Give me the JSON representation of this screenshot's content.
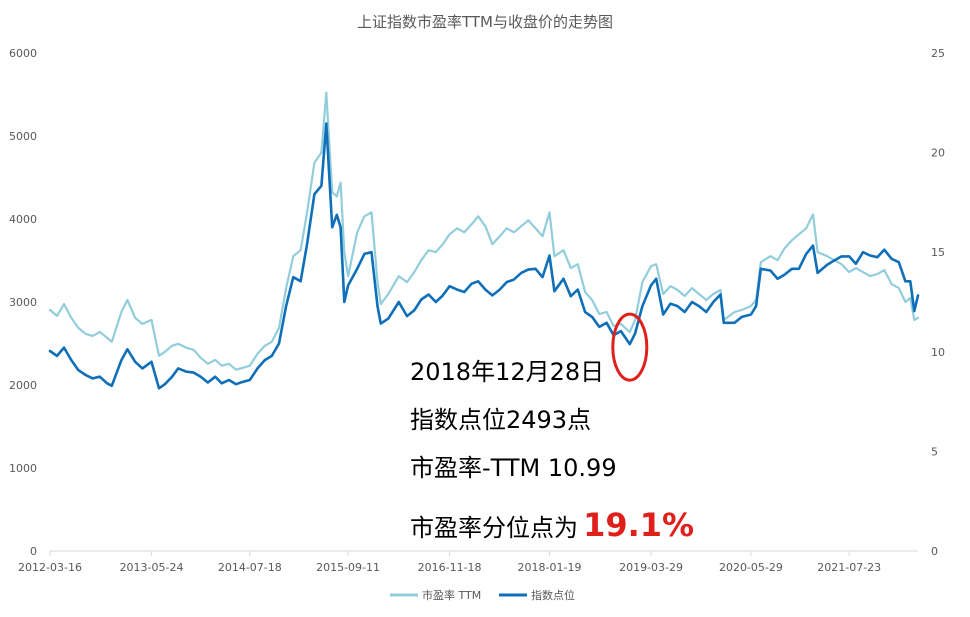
{
  "colors": {
    "pe_series": "#92CDDC",
    "index_series": "#0F6FB8",
    "axis": "#D9D9D9",
    "text": "#595959",
    "annotation_highlight": "#E0201B",
    "circle": "#E0201B"
  },
  "chart_data": {
    "type": "line",
    "title": "上证指数市盈率TTM与收盘价的走势图",
    "x_tick_labels": [
      "2012-03-16",
      "2013-05-24",
      "2014-07-18",
      "2015-09-11",
      "2016-11-18",
      "2018-01-19",
      "2019-03-29",
      "2020-05-29",
      "2021-07-23"
    ],
    "x_range": [
      "2012-03-16",
      "2022-05-13"
    ],
    "y_left": {
      "range": [
        0,
        6000
      ],
      "ticks": [
        "0",
        "1000",
        "2000",
        "3000",
        "4000",
        "5000",
        "6000"
      ]
    },
    "y_right": {
      "range": [
        0,
        25
      ],
      "ticks": [
        "0",
        "5",
        "10",
        "15",
        "20",
        "25"
      ]
    },
    "legend_position": "bottom",
    "grid": false,
    "series": [
      {
        "name": "市盈率 TTM",
        "axis": "right",
        "points": [
          [
            "2012-03-16",
            12.1
          ],
          [
            "2012-04-15",
            11.8
          ],
          [
            "2012-05-15",
            12.4
          ],
          [
            "2012-06-15",
            11.7
          ],
          [
            "2012-07-15",
            11.2
          ],
          [
            "2012-08-15",
            10.9
          ],
          [
            "2012-09-15",
            10.8
          ],
          [
            "2012-10-15",
            11.0
          ],
          [
            "2012-11-15",
            10.7
          ],
          [
            "2012-12-05",
            10.5
          ],
          [
            "2013-01-15",
            12.0
          ],
          [
            "2013-02-10",
            12.6
          ],
          [
            "2013-03-15",
            11.7
          ],
          [
            "2013-04-15",
            11.4
          ],
          [
            "2013-05-24",
            11.6
          ],
          [
            "2013-06-25",
            9.8
          ],
          [
            "2013-07-20",
            10.0
          ],
          [
            "2013-08-20",
            10.3
          ],
          [
            "2013-09-15",
            10.4
          ],
          [
            "2013-10-20",
            10.2
          ],
          [
            "2013-11-20",
            10.1
          ],
          [
            "2013-12-20",
            9.7
          ],
          [
            "2014-01-20",
            9.4
          ],
          [
            "2014-02-20",
            9.6
          ],
          [
            "2014-03-20",
            9.3
          ],
          [
            "2014-04-20",
            9.4
          ],
          [
            "2014-05-20",
            9.1
          ],
          [
            "2014-06-20",
            9.2
          ],
          [
            "2014-07-18",
            9.3
          ],
          [
            "2014-08-20",
            9.9
          ],
          [
            "2014-09-20",
            10.3
          ],
          [
            "2014-10-20",
            10.5
          ],
          [
            "2014-11-20",
            11.2
          ],
          [
            "2014-12-20",
            13.2
          ],
          [
            "2015-01-20",
            14.8
          ],
          [
            "2015-02-20",
            15.1
          ],
          [
            "2015-03-20",
            17.0
          ],
          [
            "2015-04-20",
            19.5
          ],
          [
            "2015-05-20",
            20.0
          ],
          [
            "2015-06-10",
            23.0
          ],
          [
            "2015-07-05",
            18.0
          ],
          [
            "2015-07-25",
            17.8
          ],
          [
            "2015-08-10",
            18.5
          ],
          [
            "2015-08-26",
            15.0
          ],
          [
            "2015-09-11",
            13.8
          ],
          [
            "2015-10-20",
            16.0
          ],
          [
            "2015-11-20",
            16.8
          ],
          [
            "2015-12-20",
            17.0
          ],
          [
            "2016-01-15",
            13.5
          ],
          [
            "2016-01-29",
            12.4
          ],
          [
            "2016-03-01",
            12.9
          ],
          [
            "2016-04-15",
            13.8
          ],
          [
            "2016-05-20",
            13.5
          ],
          [
            "2016-06-20",
            14.0
          ],
          [
            "2016-07-20",
            14.6
          ],
          [
            "2016-08-20",
            15.1
          ],
          [
            "2016-09-20",
            15.0
          ],
          [
            "2016-10-20",
            15.4
          ],
          [
            "2016-11-18",
            15.9
          ],
          [
            "2016-12-20",
            16.2
          ],
          [
            "2017-01-20",
            16.0
          ],
          [
            "2017-02-20",
            16.4
          ],
          [
            "2017-03-20",
            16.8
          ],
          [
            "2017-04-20",
            16.3
          ],
          [
            "2017-05-20",
            15.4
          ],
          [
            "2017-06-20",
            15.8
          ],
          [
            "2017-07-20",
            16.2
          ],
          [
            "2017-08-20",
            16.0
          ],
          [
            "2017-09-20",
            16.3
          ],
          [
            "2017-10-20",
            16.6
          ],
          [
            "2017-11-20",
            16.2
          ],
          [
            "2017-12-20",
            15.8
          ],
          [
            "2018-01-19",
            17.0
          ],
          [
            "2018-02-09",
            14.8
          ],
          [
            "2018-03-20",
            15.1
          ],
          [
            "2018-04-20",
            14.2
          ],
          [
            "2018-05-20",
            14.4
          ],
          [
            "2018-06-20",
            13.0
          ],
          [
            "2018-07-20",
            12.6
          ],
          [
            "2018-08-20",
            11.9
          ],
          [
            "2018-09-20",
            12.0
          ],
          [
            "2018-10-20",
            11.3
          ],
          [
            "2018-11-20",
            11.4
          ],
          [
            "2018-12-28",
            10.99
          ],
          [
            "2019-01-20",
            11.6
          ],
          [
            "2019-02-20",
            13.5
          ],
          [
            "2019-03-29",
            14.3
          ],
          [
            "2019-04-20",
            14.4
          ],
          [
            "2019-05-20",
            12.9
          ],
          [
            "2019-06-20",
            13.3
          ],
          [
            "2019-07-20",
            13.1
          ],
          [
            "2019-08-20",
            12.8
          ],
          [
            "2019-09-20",
            13.2
          ],
          [
            "2019-10-20",
            12.9
          ],
          [
            "2019-11-20",
            12.6
          ],
          [
            "2019-12-20",
            12.9
          ],
          [
            "2020-01-20",
            13.1
          ],
          [
            "2020-02-03",
            11.6
          ],
          [
            "2020-03-20",
            12.0
          ],
          [
            "2020-04-20",
            12.1
          ],
          [
            "2020-05-29",
            12.3
          ],
          [
            "2020-06-20",
            12.6
          ],
          [
            "2020-07-10",
            14.5
          ],
          [
            "2020-08-20",
            14.8
          ],
          [
            "2020-09-20",
            14.6
          ],
          [
            "2020-10-20",
            15.2
          ],
          [
            "2020-11-20",
            15.6
          ],
          [
            "2020-12-20",
            15.9
          ],
          [
            "2021-01-20",
            16.2
          ],
          [
            "2021-02-18",
            16.9
          ],
          [
            "2021-03-10",
            15.0
          ],
          [
            "2021-04-20",
            14.8
          ],
          [
            "2021-05-20",
            14.6
          ],
          [
            "2021-06-20",
            14.4
          ],
          [
            "2021-07-23",
            14.0
          ],
          [
            "2021-08-20",
            14.2
          ],
          [
            "2021-09-20",
            14.0
          ],
          [
            "2021-10-20",
            13.8
          ],
          [
            "2021-11-20",
            13.9
          ],
          [
            "2021-12-20",
            14.1
          ],
          [
            "2022-01-20",
            13.4
          ],
          [
            "2022-02-20",
            13.2
          ],
          [
            "2022-03-20",
            12.5
          ],
          [
            "2022-04-10",
            12.7
          ],
          [
            "2022-04-27",
            11.6
          ],
          [
            "2022-05-13",
            11.7
          ]
        ]
      },
      {
        "name": "指数点位",
        "axis": "left",
        "points": [
          [
            "2012-03-16",
            2410
          ],
          [
            "2012-04-15",
            2350
          ],
          [
            "2012-05-15",
            2450
          ],
          [
            "2012-06-15",
            2300
          ],
          [
            "2012-07-15",
            2180
          ],
          [
            "2012-08-15",
            2120
          ],
          [
            "2012-09-15",
            2080
          ],
          [
            "2012-10-15",
            2100
          ],
          [
            "2012-11-15",
            2020
          ],
          [
            "2012-12-05",
            1990
          ],
          [
            "2013-01-15",
            2300
          ],
          [
            "2013-02-10",
            2430
          ],
          [
            "2013-03-15",
            2280
          ],
          [
            "2013-04-15",
            2200
          ],
          [
            "2013-05-24",
            2280
          ],
          [
            "2013-06-25",
            1960
          ],
          [
            "2013-07-20",
            2010
          ],
          [
            "2013-08-20",
            2100
          ],
          [
            "2013-09-15",
            2200
          ],
          [
            "2013-10-20",
            2160
          ],
          [
            "2013-11-20",
            2150
          ],
          [
            "2013-12-20",
            2100
          ],
          [
            "2014-01-20",
            2030
          ],
          [
            "2014-02-20",
            2100
          ],
          [
            "2014-03-20",
            2020
          ],
          [
            "2014-04-20",
            2060
          ],
          [
            "2014-05-20",
            2010
          ],
          [
            "2014-06-20",
            2040
          ],
          [
            "2014-07-18",
            2060
          ],
          [
            "2014-08-20",
            2200
          ],
          [
            "2014-09-20",
            2300
          ],
          [
            "2014-10-20",
            2350
          ],
          [
            "2014-11-20",
            2500
          ],
          [
            "2014-12-20",
            2950
          ],
          [
            "2015-01-20",
            3300
          ],
          [
            "2015-02-20",
            3250
          ],
          [
            "2015-03-20",
            3700
          ],
          [
            "2015-04-20",
            4300
          ],
          [
            "2015-05-20",
            4400
          ],
          [
            "2015-06-10",
            5150
          ],
          [
            "2015-07-05",
            3900
          ],
          [
            "2015-07-25",
            4050
          ],
          [
            "2015-08-10",
            3900
          ],
          [
            "2015-08-26",
            3000
          ],
          [
            "2015-09-11",
            3200
          ],
          [
            "2015-10-20",
            3400
          ],
          [
            "2015-11-20",
            3580
          ],
          [
            "2015-12-20",
            3600
          ],
          [
            "2016-01-15",
            2950
          ],
          [
            "2016-01-29",
            2740
          ],
          [
            "2016-03-01",
            2800
          ],
          [
            "2016-04-15",
            3000
          ],
          [
            "2016-05-20",
            2830
          ],
          [
            "2016-06-20",
            2900
          ],
          [
            "2016-07-20",
            3030
          ],
          [
            "2016-08-20",
            3090
          ],
          [
            "2016-09-20",
            3000
          ],
          [
            "2016-10-20",
            3080
          ],
          [
            "2016-11-18",
            3190
          ],
          [
            "2016-12-20",
            3150
          ],
          [
            "2017-01-20",
            3120
          ],
          [
            "2017-02-20",
            3220
          ],
          [
            "2017-03-20",
            3250
          ],
          [
            "2017-04-20",
            3150
          ],
          [
            "2017-05-20",
            3080
          ],
          [
            "2017-06-20",
            3150
          ],
          [
            "2017-07-20",
            3240
          ],
          [
            "2017-08-20",
            3270
          ],
          [
            "2017-09-20",
            3350
          ],
          [
            "2017-10-20",
            3390
          ],
          [
            "2017-11-20",
            3400
          ],
          [
            "2017-12-20",
            3300
          ],
          [
            "2018-01-19",
            3560
          ],
          [
            "2018-02-09",
            3130
          ],
          [
            "2018-03-20",
            3280
          ],
          [
            "2018-04-20",
            3070
          ],
          [
            "2018-05-20",
            3150
          ],
          [
            "2018-06-20",
            2880
          ],
          [
            "2018-07-20",
            2820
          ],
          [
            "2018-08-20",
            2700
          ],
          [
            "2018-09-20",
            2750
          ],
          [
            "2018-10-20",
            2600
          ],
          [
            "2018-11-20",
            2650
          ],
          [
            "2018-12-28",
            2493
          ],
          [
            "2019-01-20",
            2620
          ],
          [
            "2019-02-20",
            2950
          ],
          [
            "2019-03-29",
            3200
          ],
          [
            "2019-04-20",
            3280
          ],
          [
            "2019-05-20",
            2850
          ],
          [
            "2019-06-20",
            2980
          ],
          [
            "2019-07-20",
            2950
          ],
          [
            "2019-08-20",
            2880
          ],
          [
            "2019-09-20",
            3000
          ],
          [
            "2019-10-20",
            2950
          ],
          [
            "2019-11-20",
            2880
          ],
          [
            "2019-12-20",
            3000
          ],
          [
            "2020-01-20",
            3090
          ],
          [
            "2020-02-03",
            2750
          ],
          [
            "2020-03-20",
            2750
          ],
          [
            "2020-04-20",
            2820
          ],
          [
            "2020-05-29",
            2850
          ],
          [
            "2020-06-20",
            2950
          ],
          [
            "2020-07-10",
            3400
          ],
          [
            "2020-08-20",
            3380
          ],
          [
            "2020-09-20",
            3280
          ],
          [
            "2020-10-20",
            3330
          ],
          [
            "2020-11-20",
            3400
          ],
          [
            "2020-12-20",
            3400
          ],
          [
            "2021-01-20",
            3580
          ],
          [
            "2021-02-18",
            3680
          ],
          [
            "2021-03-10",
            3350
          ],
          [
            "2021-04-20",
            3450
          ],
          [
            "2021-05-20",
            3500
          ],
          [
            "2021-06-20",
            3550
          ],
          [
            "2021-07-23",
            3550
          ],
          [
            "2021-08-20",
            3460
          ],
          [
            "2021-09-20",
            3600
          ],
          [
            "2021-10-20",
            3560
          ],
          [
            "2021-11-20",
            3540
          ],
          [
            "2021-12-20",
            3630
          ],
          [
            "2022-01-20",
            3520
          ],
          [
            "2022-02-20",
            3480
          ],
          [
            "2022-03-20",
            3250
          ],
          [
            "2022-04-10",
            3250
          ],
          [
            "2022-04-27",
            2890
          ],
          [
            "2022-05-13",
            3080
          ]
        ]
      }
    ],
    "highlight": {
      "date": "2018-12-28",
      "index_value": 2493
    }
  },
  "annotation": {
    "line1": "2018年12月28日",
    "line2": "指数点位2493点",
    "line3": "市盈率-TTM 10.99",
    "line4_prefix": "市盈率分位点为",
    "line4_value": "19.1%"
  }
}
